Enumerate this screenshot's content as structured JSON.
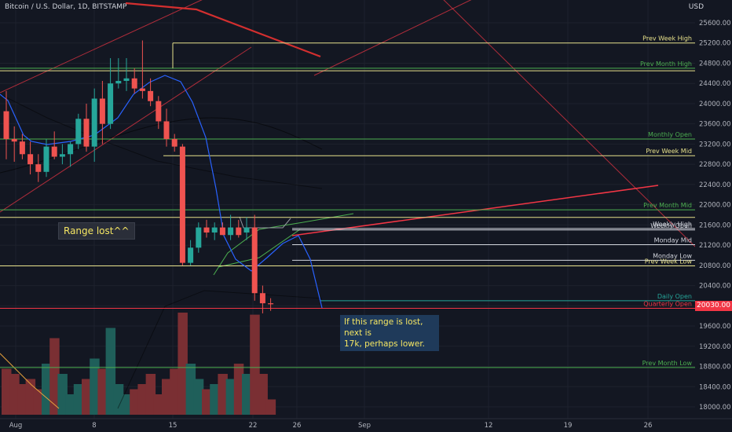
{
  "header": {
    "symbol_title": "Bitcoin / U.S. Dollar, 1D, BITSTAMP",
    "currency": "USD"
  },
  "current_price": "20030.00",
  "annotations": {
    "range_note": "Range lost^^",
    "outlook_note_line1": "If this range is lost, next is",
    "outlook_note_line2": "17k, perhaps lower."
  },
  "colors": {
    "background": "#131722",
    "up": "#26a69a",
    "down": "#ef5350",
    "level_yellow": "#e6e08a",
    "level_green": "#4caf50",
    "level_white": "#d1d4dc",
    "trend_red": "#f23645",
    "ma_blue": "#2962ff"
  },
  "chart_data": {
    "type": "candlestick",
    "title": "Bitcoin / U.S. Dollar, 1D, BITSTAMP",
    "ylim": [
      17900,
      25800
    ],
    "yticks": [
      18000,
      18400,
      18800,
      19200,
      19600,
      20000,
      20400,
      20800,
      21200,
      21600,
      22000,
      22400,
      22800,
      23200,
      23600,
      24000,
      24400,
      24800,
      25200,
      25600
    ],
    "x_tick_labels": [
      "Aug",
      "8",
      "15",
      "22",
      "26",
      "Sep",
      "12",
      "19",
      "26"
    ],
    "candles": [
      {
        "o": 23850,
        "h": 24250,
        "l": 22900,
        "c": 23300
      },
      {
        "o": 23300,
        "h": 23550,
        "l": 22850,
        "c": 23250
      },
      {
        "o": 23250,
        "h": 23400,
        "l": 22900,
        "c": 23000
      },
      {
        "o": 23000,
        "h": 23250,
        "l": 22600,
        "c": 22800
      },
      {
        "o": 22800,
        "h": 23000,
        "l": 22450,
        "c": 22650
      },
      {
        "o": 22650,
        "h": 23300,
        "l": 22550,
        "c": 23150
      },
      {
        "o": 23150,
        "h": 23450,
        "l": 22900,
        "c": 22950
      },
      {
        "o": 22950,
        "h": 23200,
        "l": 22800,
        "c": 23000
      },
      {
        "o": 23000,
        "h": 23250,
        "l": 22750,
        "c": 23200
      },
      {
        "o": 23200,
        "h": 23800,
        "l": 23100,
        "c": 23700
      },
      {
        "o": 23700,
        "h": 24000,
        "l": 23050,
        "c": 23150
      },
      {
        "o": 23150,
        "h": 24300,
        "l": 22850,
        "c": 24100
      },
      {
        "o": 24100,
        "h": 24450,
        "l": 23200,
        "c": 23600
      },
      {
        "o": 23600,
        "h": 24900,
        "l": 23500,
        "c": 24400
      },
      {
        "o": 24400,
        "h": 24900,
        "l": 24300,
        "c": 24450
      },
      {
        "o": 24450,
        "h": 24900,
        "l": 24250,
        "c": 24500
      },
      {
        "o": 24500,
        "h": 24700,
        "l": 24200,
        "c": 24300
      },
      {
        "o": 24300,
        "h": 25250,
        "l": 24100,
        "c": 24250
      },
      {
        "o": 24250,
        "h": 24500,
        "l": 23950,
        "c": 24050
      },
      {
        "o": 24050,
        "h": 24150,
        "l": 23500,
        "c": 23650
      },
      {
        "o": 23650,
        "h": 23900,
        "l": 23150,
        "c": 23300
      },
      {
        "o": 23300,
        "h": 23400,
        "l": 23050,
        "c": 23150
      },
      {
        "o": 23150,
        "h": 23200,
        "l": 20800,
        "c": 20850
      },
      {
        "o": 20850,
        "h": 21300,
        "l": 20800,
        "c": 21150
      },
      {
        "o": 21150,
        "h": 21650,
        "l": 21050,
        "c": 21550
      },
      {
        "o": 21550,
        "h": 21700,
        "l": 21350,
        "c": 21450
      },
      {
        "o": 21450,
        "h": 21650,
        "l": 21300,
        "c": 21550
      },
      {
        "o": 21550,
        "h": 21650,
        "l": 21400,
        "c": 21400
      },
      {
        "o": 21400,
        "h": 21800,
        "l": 21300,
        "c": 21550
      },
      {
        "o": 21550,
        "h": 21700,
        "l": 21350,
        "c": 21400
      },
      {
        "o": 21450,
        "h": 21750,
        "l": 21300,
        "c": 21550
      },
      {
        "o": 21550,
        "h": 21800,
        "l": 20100,
        "c": 20250
      },
      {
        "o": 20250,
        "h": 20400,
        "l": 19850,
        "c": 20050
      },
      {
        "o": 20050,
        "h": 20150,
        "l": 19900,
        "c": 20030
      }
    ],
    "volumes": [
      0.45,
      0.4,
      0.3,
      0.35,
      0.25,
      0.5,
      0.75,
      0.4,
      0.2,
      0.3,
      0.35,
      0.55,
      0.45,
      0.85,
      0.3,
      0.2,
      0.25,
      0.3,
      0.4,
      0.2,
      0.35,
      0.45,
      1.0,
      0.5,
      0.35,
      0.25,
      0.3,
      0.4,
      0.35,
      0.5,
      0.4,
      0.98,
      0.4,
      0.15
    ],
    "horizontal_levels": [
      {
        "label": "Prev Week High",
        "price": 25200,
        "color": "#e6e08a"
      },
      {
        "label": "Prev Month High",
        "price": 24700,
        "color": "#4caf50"
      },
      {
        "label": "Monthly Open",
        "price": 23300,
        "color": "#4caf50"
      },
      {
        "label": "Prev Week Mid",
        "price": 22970,
        "color": "#e6e08a"
      },
      {
        "label": "Prev Month Mid",
        "price": 21900,
        "color": "#4caf50"
      },
      {
        "label": "Weekly High",
        "price": 21530,
        "color": "#d1d4dc"
      },
      {
        "label": "Weekly Open",
        "price": 21500,
        "color": "#d1d4dc"
      },
      {
        "label": "Monday Mid",
        "price": 21210,
        "color": "#d1d4dc"
      },
      {
        "label": "Monday Low",
        "price": 20900,
        "color": "#d1d4dc"
      },
      {
        "label": "Prev Week Low",
        "price": 20790,
        "color": "#e6e08a"
      },
      {
        "label": "Daily Open",
        "price": 20100,
        "color": "#26a69a"
      },
      {
        "label": "Quarterly Open",
        "price": 19950,
        "color": "#f23645"
      },
      {
        "label": "Prev Month Low",
        "price": 18780,
        "color": "#4caf50"
      }
    ]
  }
}
